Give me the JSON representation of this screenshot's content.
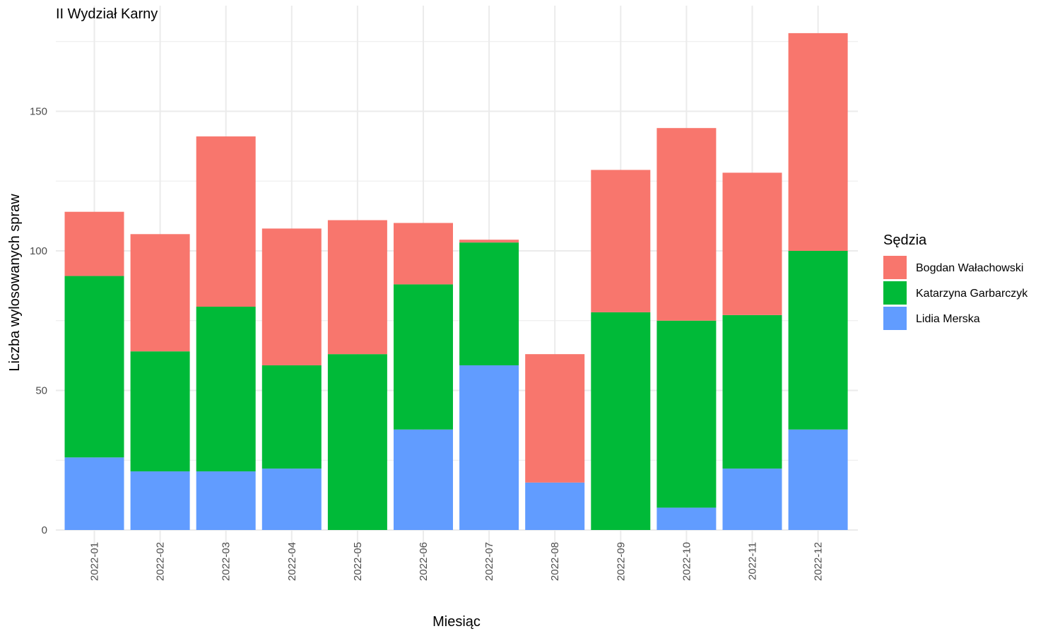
{
  "chart_data": {
    "type": "bar",
    "stacked": true,
    "title": "II Wydział Karny",
    "xlabel": "Miesiąc",
    "ylabel": "Liczba wylosowanych spraw",
    "categories": [
      "2022-01",
      "2022-02",
      "2022-03",
      "2022-04",
      "2022-05",
      "2022-06",
      "2022-07",
      "2022-08",
      "2022-09",
      "2022-10",
      "2022-11",
      "2022-12"
    ],
    "y_ticks": [
      0,
      50,
      100,
      150
    ],
    "ylim": [
      0,
      180
    ],
    "grid": true,
    "legend": {
      "title": "Sędzia",
      "position": "right"
    },
    "series": [
      {
        "name": "Bogdan Wałachowski",
        "color": "#F8766D",
        "values": [
          23,
          42,
          61,
          49,
          48,
          22,
          1,
          46,
          51,
          69,
          51,
          78
        ]
      },
      {
        "name": "Katarzyna Garbarczyk",
        "color": "#00BA38",
        "values": [
          65,
          43,
          59,
          37,
          63,
          52,
          44,
          0,
          78,
          67,
          55,
          64
        ]
      },
      {
        "name": "Lidia Merska",
        "color": "#619CFF",
        "values": [
          26,
          21,
          21,
          22,
          0,
          36,
          59,
          17,
          0,
          8,
          22,
          36
        ]
      }
    ]
  }
}
